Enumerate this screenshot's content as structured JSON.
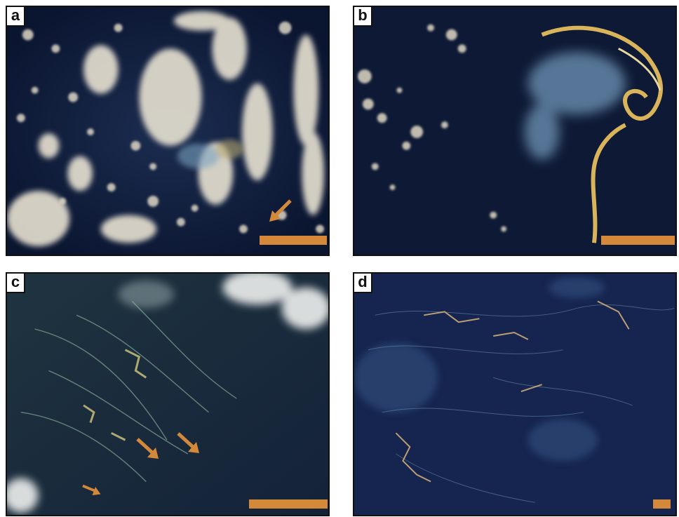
{
  "panels": [
    {
      "label": "a"
    },
    {
      "label": "b"
    },
    {
      "label": "c"
    },
    {
      "label": "d"
    }
  ],
  "colors": {
    "ocean_dark": "#0d1a33",
    "ocean_mid": "#15254a",
    "cloud": "#e8e2d2",
    "bloom": "#d9b45a",
    "plume": "#6f95b8",
    "accent": "#d4893a"
  },
  "icons": {
    "annotation": "arrow-icon",
    "scale": "scale-bar"
  }
}
